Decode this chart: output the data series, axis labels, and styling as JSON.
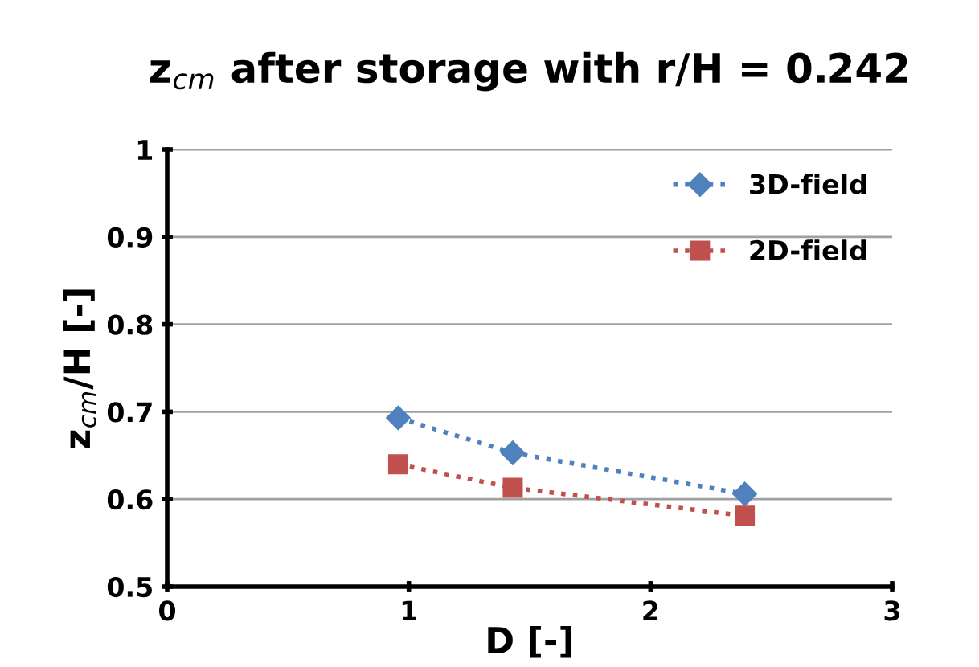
{
  "chart_data": {
    "type": "line",
    "title": "z$_{cm}$ after storage with r/H = 0.242",
    "xlabel": "D [-]",
    "ylabel": "z$_{cm}$/H [-]",
    "xlim": [
      0,
      3
    ],
    "xticks": [
      0,
      1,
      2,
      3
    ],
    "ylim": [
      0.5,
      1
    ],
    "yticks": [
      0.5,
      0.6,
      0.7,
      0.8,
      0.9,
      1
    ],
    "grid": "y",
    "legend": "top right",
    "line_style": "dotted",
    "series": [
      {
        "name": "3D-field",
        "color": "#4f81bd",
        "marker": "diamond",
        "x": [
          0.956,
          1.43,
          2.39
        ],
        "values": [
          0.693,
          0.653,
          0.606
        ]
      },
      {
        "name": "2D-field",
        "color": "#c0504d",
        "marker": "square",
        "x": [
          0.956,
          1.43,
          2.39
        ],
        "values": [
          0.64,
          0.613,
          0.581
        ]
      }
    ]
  }
}
